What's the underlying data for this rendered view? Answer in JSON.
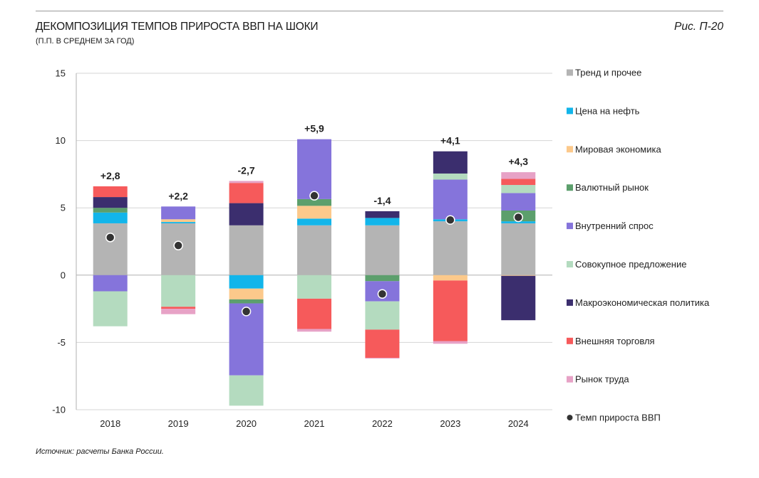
{
  "header": {
    "figure_label": "Рис. П-20"
  },
  "footer": {
    "source": "Источник: расчеты Банка России."
  },
  "chart_data": {
    "type": "bar",
    "stacked": true,
    "title": "ДЕКОМПОЗИЦИЯ ТЕМПОВ ПРИРОСТА ВВП НА ШОКИ",
    "subtitle": "(П.П. В СРЕДНЕМ ЗА ГОД)",
    "categories": [
      "2018",
      "2019",
      "2020",
      "2021",
      "2022",
      "2023",
      "2024"
    ],
    "ylim": [
      -10,
      15
    ],
    "yticks": [
      15,
      10,
      5,
      0,
      -5,
      -10
    ],
    "grid": true,
    "legend": "right",
    "series": [
      {
        "name": "Тренд и прочее",
        "color": "#b4b4b4",
        "values": [
          3.85,
          3.85,
          3.7,
          3.7,
          3.7,
          4.0,
          3.85
        ]
      },
      {
        "name": "Цена на нефть",
        "color": "#12b5ea",
        "values": [
          0.8,
          0.1,
          -1.0,
          0.5,
          0.55,
          0.15,
          0.15
        ]
      },
      {
        "name": "Мировая экономика",
        "color": "#fcc98b",
        "values": [
          0,
          0.2,
          -0.8,
          0.95,
          0,
          -0.4,
          -0.05
        ]
      },
      {
        "name": "Валютный рынок",
        "color": "#5c9f6c",
        "values": [
          0.35,
          0,
          -0.3,
          0.5,
          -0.45,
          0,
          0.8
        ]
      },
      {
        "name": "Внутренний спрос",
        "color": "#8574db",
        "values": [
          -1.2,
          0.95,
          -5.35,
          4.45,
          -1.5,
          2.95,
          1.3
        ]
      },
      {
        "name": "Совокупное предложение",
        "color": "#b4dbbf",
        "values": [
          -2.6,
          -2.35,
          -2.25,
          -1.75,
          -2.1,
          0.45,
          0.6
        ]
      },
      {
        "name": "Макроэкономическая политика",
        "color": "#3b2e6e",
        "values": [
          0.8,
          0,
          1.65,
          0,
          0.5,
          1.65,
          -3.3
        ]
      },
      {
        "name": "Внешняя торговля",
        "color": "#f65a5b",
        "values": [
          0.8,
          -0.15,
          1.5,
          -2.25,
          -2.1,
          -4.5,
          0.45
        ]
      },
      {
        "name": "Рынок труда",
        "color": "#e7a2c6",
        "values": [
          0,
          -0.4,
          0.15,
          -0.2,
          -0.05,
          -0.2,
          0.5
        ]
      }
    ],
    "gdp": {
      "name": "Темп прироста ВВП",
      "type": "scatter",
      "color": "#333333",
      "values": [
        2.8,
        2.2,
        -2.7,
        5.9,
        -1.4,
        4.1,
        4.3
      ],
      "labels": [
        "+2,8",
        "+2,2",
        "-2,7",
        "+5,9",
        "-1,4",
        "+4,1",
        "+4,3"
      ]
    }
  }
}
